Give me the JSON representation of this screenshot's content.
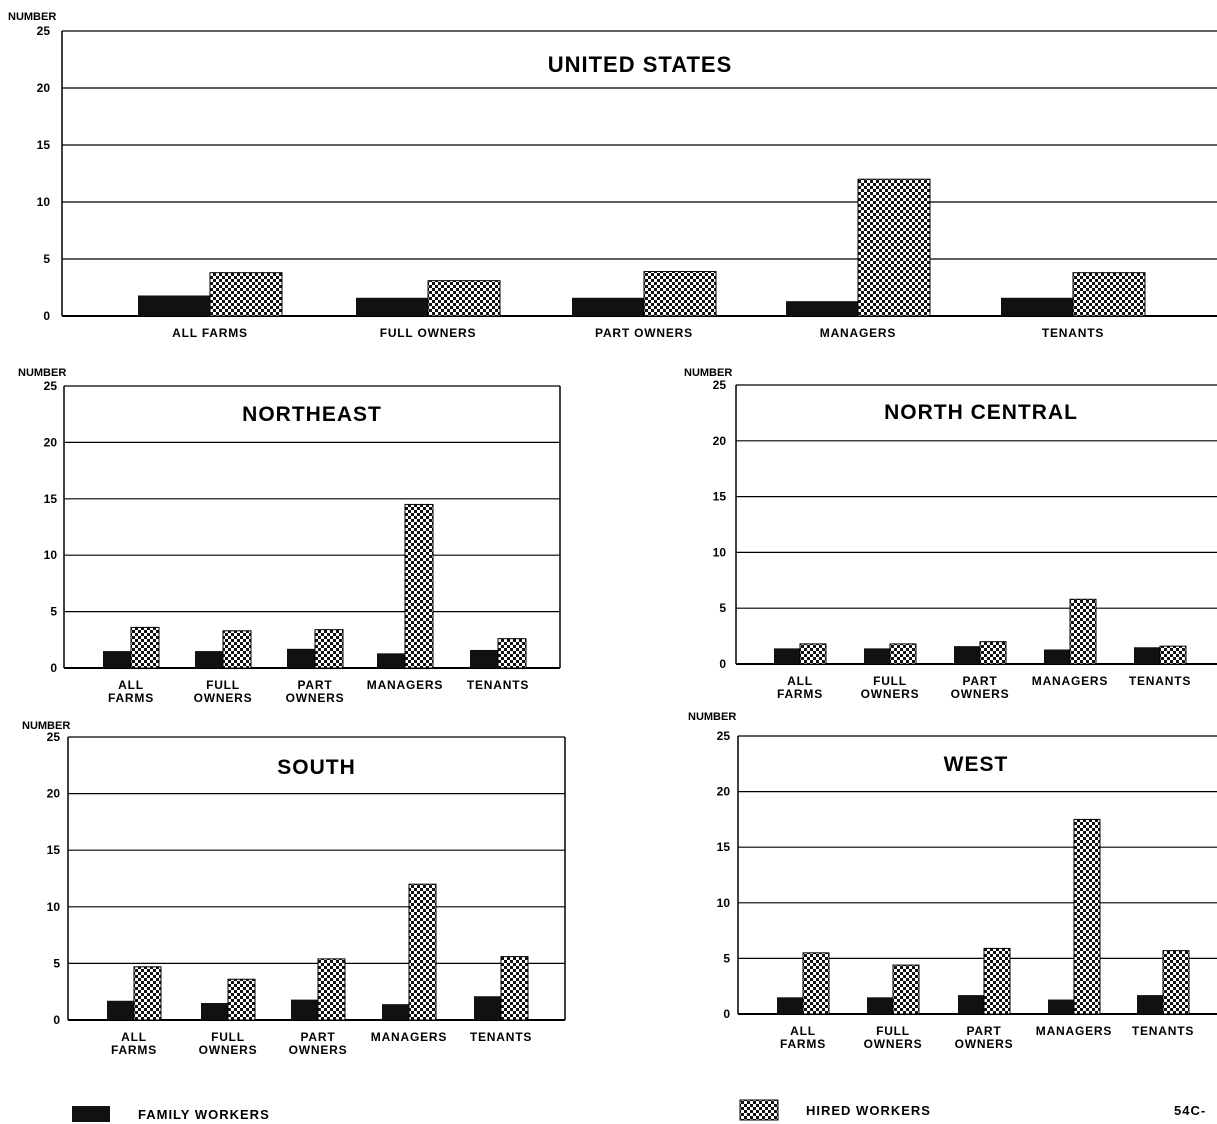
{
  "legend": {
    "family_label": "FAMILY WORKERS",
    "hired_label": "HIRED WORKERS"
  },
  "figure_code": "54C-",
  "colors": {
    "family": "#111111",
    "hired_pattern": "checkered",
    "frame": "#000000",
    "background": "#ffffff"
  },
  "chart_data": [
    {
      "type": "bar",
      "title": "UNITED STATES",
      "ylabel": "NUMBER",
      "ylim": [
        0,
        25
      ],
      "yticks": [
        "0",
        "5",
        "10",
        "15",
        "20",
        "25"
      ],
      "categories": [
        [
          "ALL FARMS"
        ],
        [
          "FULL OWNERS"
        ],
        [
          "PART OWNERS"
        ],
        [
          "MANAGERS"
        ],
        [
          "TENANTS"
        ]
      ],
      "series": [
        {
          "name": "FAMILY WORKERS",
          "values": [
            1.8,
            1.6,
            1.6,
            1.3,
            1.6
          ]
        },
        {
          "name": "HIRED WORKERS",
          "values": [
            3.8,
            3.1,
            3.9,
            12.0,
            3.8
          ]
        }
      ]
    },
    {
      "type": "bar",
      "title": "NORTHEAST",
      "ylabel": "NUMBER",
      "ylim": [
        0,
        25
      ],
      "yticks": [
        "0",
        "5",
        "10",
        "15",
        "20",
        "25"
      ],
      "categories": [
        [
          "ALL",
          "FARMS"
        ],
        [
          "FULL",
          "OWNERS"
        ],
        [
          "PART",
          "OWNERS"
        ],
        [
          "MANAGERS"
        ],
        [
          "TENANTS"
        ]
      ],
      "series": [
        {
          "name": "FAMILY WORKERS",
          "values": [
            1.5,
            1.5,
            1.7,
            1.3,
            1.6
          ]
        },
        {
          "name": "HIRED WORKERS",
          "values": [
            3.6,
            3.3,
            3.4,
            14.5,
            2.6
          ]
        }
      ]
    },
    {
      "type": "bar",
      "title": "NORTH CENTRAL",
      "ylabel": "NUMBER",
      "ylim": [
        0,
        25
      ],
      "yticks": [
        "0",
        "5",
        "10",
        "15",
        "20",
        "25"
      ],
      "categories": [
        [
          "ALL",
          "FARMS"
        ],
        [
          "FULL",
          "OWNERS"
        ],
        [
          "PART",
          "OWNERS"
        ],
        [
          "MANAGERS"
        ],
        [
          "TENANTS"
        ]
      ],
      "series": [
        {
          "name": "FAMILY WORKERS",
          "values": [
            1.4,
            1.4,
            1.6,
            1.3,
            1.5
          ]
        },
        {
          "name": "HIRED WORKERS",
          "values": [
            1.8,
            1.8,
            2.0,
            5.8,
            1.6
          ]
        }
      ]
    },
    {
      "type": "bar",
      "title": "SOUTH",
      "ylabel": "NUMBER",
      "ylim": [
        0,
        25
      ],
      "yticks": [
        "0",
        "5",
        "10",
        "15",
        "20",
        "25"
      ],
      "categories": [
        [
          "ALL",
          "FARMS"
        ],
        [
          "FULL",
          "OWNERS"
        ],
        [
          "PART",
          "OWNERS"
        ],
        [
          "MANAGERS"
        ],
        [
          "TENANTS"
        ]
      ],
      "series": [
        {
          "name": "FAMILY WORKERS",
          "values": [
            1.7,
            1.5,
            1.8,
            1.4,
            2.1
          ]
        },
        {
          "name": "HIRED WORKERS",
          "values": [
            4.7,
            3.6,
            5.4,
            12.0,
            5.6
          ]
        }
      ]
    },
    {
      "type": "bar",
      "title": "WEST",
      "ylabel": "NUMBER",
      "ylim": [
        0,
        25
      ],
      "yticks": [
        "0",
        "5",
        "10",
        "15",
        "20",
        "25"
      ],
      "categories": [
        [
          "ALL",
          "FARMS"
        ],
        [
          "FULL",
          "OWNERS"
        ],
        [
          "PART",
          "OWNERS"
        ],
        [
          "MANAGERS"
        ],
        [
          "TENANTS"
        ]
      ],
      "series": [
        {
          "name": "FAMILY WORKERS",
          "values": [
            1.5,
            1.5,
            1.7,
            1.3,
            1.7
          ]
        },
        {
          "name": "HIRED WORKERS",
          "values": [
            5.5,
            4.4,
            5.9,
            17.5,
            5.7
          ]
        }
      ]
    }
  ]
}
